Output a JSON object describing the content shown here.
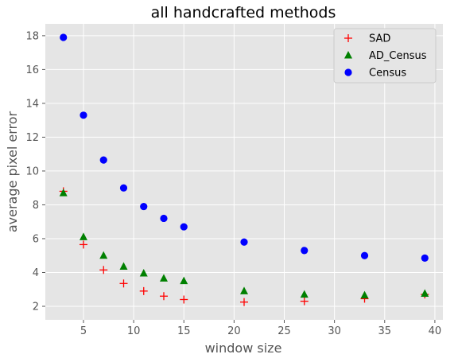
{
  "chart_data": {
    "type": "scatter",
    "title": "all handcrafted methods",
    "xlabel": "window size",
    "ylabel": "average pixel error",
    "xlim": [
      1.2,
      40.8
    ],
    "ylim": [
      1.2,
      18.7
    ],
    "xticks": [
      5,
      10,
      15,
      20,
      25,
      30,
      35,
      40
    ],
    "yticks": [
      2,
      4,
      6,
      8,
      10,
      12,
      14,
      16,
      18
    ],
    "grid": true,
    "legend_position": "top-right",
    "series": [
      {
        "name": "SAD",
        "marker": "plus",
        "color": "#ff0000",
        "x": [
          3,
          5,
          7,
          9,
          11,
          13,
          15,
          21,
          27,
          33,
          39
        ],
        "y": [
          8.8,
          5.65,
          4.15,
          3.35,
          2.9,
          2.6,
          2.4,
          2.25,
          2.3,
          2.45,
          2.7
        ]
      },
      {
        "name": "AD_Census",
        "marker": "triangle",
        "color": "#008000",
        "x": [
          3,
          5,
          7,
          9,
          11,
          13,
          15,
          21,
          27,
          33,
          39
        ],
        "y": [
          8.7,
          6.1,
          5.0,
          4.35,
          3.95,
          3.65,
          3.5,
          2.9,
          2.7,
          2.65,
          2.75
        ]
      },
      {
        "name": "Census",
        "marker": "circle",
        "color": "#0000ff",
        "x": [
          3,
          5,
          7,
          9,
          11,
          13,
          15,
          21,
          27,
          33,
          39
        ],
        "y": [
          17.9,
          13.3,
          10.65,
          9.0,
          7.9,
          7.2,
          6.7,
          5.8,
          5.3,
          5.0,
          4.85
        ]
      }
    ]
  }
}
